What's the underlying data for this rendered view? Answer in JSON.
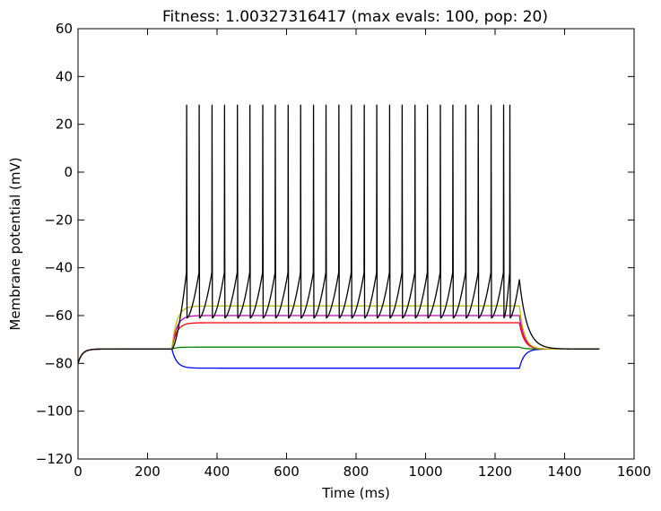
{
  "chart_data": {
    "type": "line",
    "title": "Fitness: 1.00327316417 (max evals: 100, pop: 20)",
    "xlabel": "Time (ms)",
    "ylabel": "Membrane potential (mV)",
    "xlim": [
      0,
      1600
    ],
    "ylim": [
      -120,
      60
    ],
    "xticks": [
      0,
      200,
      400,
      600,
      800,
      1000,
      1200,
      1400,
      1600
    ],
    "yticks": [
      -120,
      -100,
      -80,
      -60,
      -40,
      -20,
      0,
      20,
      40,
      60
    ],
    "ytick_labels": [
      "−120",
      "−100",
      "−80",
      "−60",
      "−40",
      "−20",
      "0",
      "20",
      "40",
      "60"
    ],
    "grid": false,
    "stimulus": {
      "start_ms": 270,
      "end_ms": 1270,
      "sim_end_ms": 1500
    },
    "resting_potential_mv": -74,
    "series": [
      {
        "kind": "step",
        "color": "#0000ff",
        "plateau_mv": -82
      },
      {
        "kind": "step",
        "color": "#008000",
        "plateau_mv": -73.2
      },
      {
        "kind": "step",
        "color": "#ff0000",
        "plateau_mv": -63
      },
      {
        "kind": "step",
        "color": "#bf00bf",
        "plateau_mv": -60
      },
      {
        "kind": "step",
        "color": "#bfbf00",
        "plateau_mv": -56
      },
      {
        "kind": "spiking",
        "color": "#000000",
        "peak_mv": 28,
        "threshold_mv": -42,
        "trough_mv": -61,
        "final_subthreshold_mv": -45,
        "spike_times_ms": [
          312,
          348,
          385,
          421,
          458,
          494,
          531,
          567,
          604,
          640,
          677,
          713,
          750,
          786,
          823,
          859,
          896,
          932,
          969,
          1005,
          1042,
          1078,
          1115,
          1151,
          1188,
          1224,
          1242
        ]
      }
    ]
  }
}
